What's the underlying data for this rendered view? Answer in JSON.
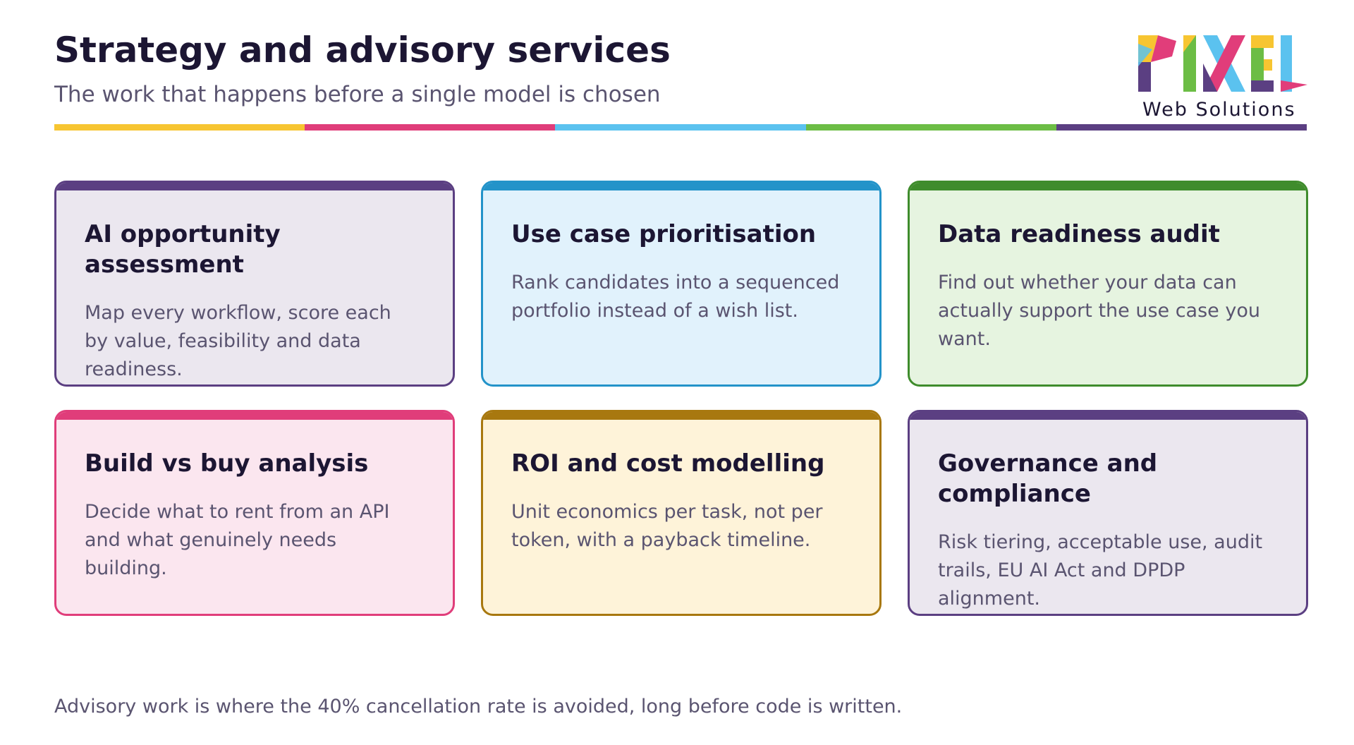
{
  "header": {
    "title": "Strategy and advisory services",
    "subtitle": "The work that happens before a single model is chosen"
  },
  "logo": {
    "wordmark": "PIXEL",
    "tagline": "Web Solutions",
    "colors": [
      "#f7c531",
      "#e13d7a",
      "#5bc2ef",
      "#6cbd45",
      "#5b3f82"
    ]
  },
  "stripe_colors": [
    "#f7c531",
    "#e03d7a",
    "#5bc2ef",
    "#6cbd45",
    "#5b3f82"
  ],
  "cards": [
    {
      "title": "AI opportunity assessment",
      "description": "Map every workflow, score each by value, feasibility and data readiness.",
      "accent": "#5b3f82",
      "background": "#ebe7ef"
    },
    {
      "title": "Use case prioritisation",
      "description": "Rank candidates into a sequenced portfolio instead of a wish list.",
      "accent": "#2393c9",
      "background": "#e1f2fc"
    },
    {
      "title": "Data readiness audit",
      "description": "Find out whether your data can actually support the use case you want.",
      "accent": "#3f8c2c",
      "background": "#e6f4e0"
    },
    {
      "title": "Build vs buy analysis",
      "description": "Decide what to rent from an API and what genuinely needs building.",
      "accent": "#e03d7a",
      "background": "#fbe6ef"
    },
    {
      "title": "ROI and cost modelling",
      "description": "Unit economics per task, not per token, with a payback timeline.",
      "accent": "#a8780f",
      "background": "#fef3d9"
    },
    {
      "title": "Governance and compliance",
      "description": "Risk tiering, acceptable use, audit trails, EU AI Act and DPDP alignment.",
      "accent": "#5b3f82",
      "background": "#ebe7ef"
    }
  ],
  "footer": {
    "note": "Advisory work is where the 40% cancellation rate is avoided, long before code is written."
  }
}
